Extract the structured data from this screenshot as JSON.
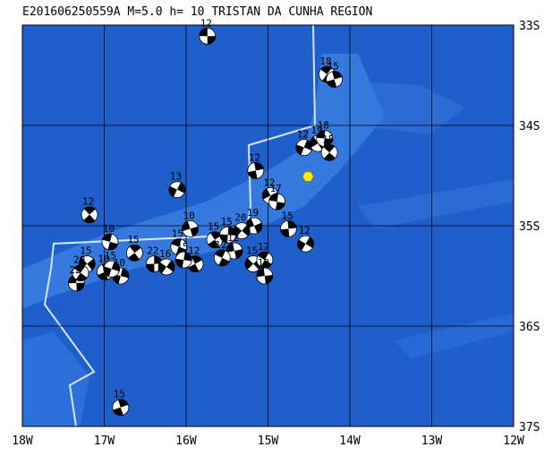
{
  "title": "E201606250559A M=5.0 h= 10 TRISTAN DA CUNHA REGION",
  "xlim": [
    -18,
    -12
  ],
  "ylim": [
    -37,
    -33
  ],
  "xticks": [
    {
      "value": -18,
      "label": "18W"
    },
    {
      "value": -17,
      "label": "17W"
    },
    {
      "value": -16,
      "label": "16W"
    },
    {
      "value": -15,
      "label": "15W"
    },
    {
      "value": -14,
      "label": "14W"
    },
    {
      "value": -13,
      "label": "13W"
    },
    {
      "value": -12,
      "label": "12W"
    }
  ],
  "yticks": [
    {
      "value": -33,
      "label": "33S"
    },
    {
      "value": -34,
      "label": "34S"
    },
    {
      "value": -35,
      "label": "35S"
    },
    {
      "value": -36,
      "label": "36S"
    },
    {
      "value": -37,
      "label": "37S"
    }
  ],
  "epicenter": {
    "lon": -14.51,
    "lat": -34.51,
    "color": "#ffee00"
  },
  "events": [
    {
      "lon": -15.74,
      "lat": -33.11,
      "depth": 12
    },
    {
      "lon": -14.28,
      "lat": -33.49,
      "depth": 18
    },
    {
      "lon": -14.19,
      "lat": -33.54,
      "depth": 15
    },
    {
      "lon": -14.56,
      "lat": -34.22,
      "depth": 12
    },
    {
      "lon": -14.39,
      "lat": -34.18,
      "depth": 19
    },
    {
      "lon": -14.31,
      "lat": -34.13,
      "depth": 18
    },
    {
      "lon": -14.25,
      "lat": -34.27,
      "depth": 15
    },
    {
      "lon": -15.15,
      "lat": -34.45,
      "depth": 12
    },
    {
      "lon": -16.11,
      "lat": -34.64,
      "depth": 13
    },
    {
      "lon": -14.97,
      "lat": -34.7,
      "depth": 12
    },
    {
      "lon": -14.89,
      "lat": -34.76,
      "depth": 17
    },
    {
      "lon": -17.18,
      "lat": -34.89,
      "depth": 12
    },
    {
      "lon": -14.75,
      "lat": -35.03,
      "depth": 15
    },
    {
      "lon": -14.54,
      "lat": -35.18,
      "depth": 12
    },
    {
      "lon": -15.17,
      "lat": -35.0,
      "depth": 19
    },
    {
      "lon": -16.93,
      "lat": -35.16,
      "depth": 10
    },
    {
      "lon": -16.63,
      "lat": -35.27,
      "depth": 15
    },
    {
      "lon": -16.39,
      "lat": -35.38,
      "depth": 22
    },
    {
      "lon": -16.24,
      "lat": -35.41,
      "depth": 16
    },
    {
      "lon": -15.95,
      "lat": -35.03,
      "depth": 10
    },
    {
      "lon": -16.09,
      "lat": -35.21,
      "depth": 15
    },
    {
      "lon": -15.65,
      "lat": -35.14,
      "depth": 15
    },
    {
      "lon": -15.49,
      "lat": -35.09,
      "depth": 15
    },
    {
      "lon": -15.32,
      "lat": -35.05,
      "depth": 20
    },
    {
      "lon": -15.41,
      "lat": -35.25,
      "depth": 12
    },
    {
      "lon": -15.56,
      "lat": -35.32,
      "depth": 12
    },
    {
      "lon": -15.89,
      "lat": -35.38,
      "depth": 12
    },
    {
      "lon": -16.03,
      "lat": -35.34,
      "depth": 15
    },
    {
      "lon": -15.18,
      "lat": -35.38,
      "depth": 15
    },
    {
      "lon": -15.04,
      "lat": -35.5,
      "depth": 12
    },
    {
      "lon": -15.04,
      "lat": -35.34,
      "depth": 12
    },
    {
      "lon": -16.99,
      "lat": -35.46,
      "depth": 10
    },
    {
      "lon": -16.8,
      "lat": -35.5,
      "depth": 10
    },
    {
      "lon": -17.21,
      "lat": -35.38,
      "depth": 15
    },
    {
      "lon": -17.34,
      "lat": -35.57,
      "depth": 22
    },
    {
      "lon": -17.29,
      "lat": -35.47,
      "depth": 20
    },
    {
      "lon": -16.8,
      "lat": -36.81,
      "depth": 15
    },
    {
      "lon": -16.91,
      "lat": -35.43,
      "depth": 15
    }
  ]
}
